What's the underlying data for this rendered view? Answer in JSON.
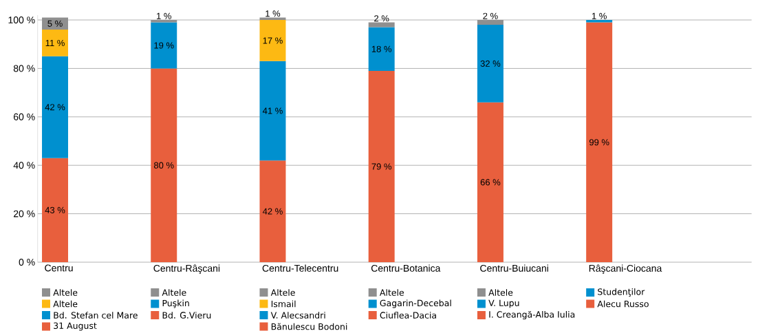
{
  "chart_data": {
    "type": "bar",
    "stacked": true,
    "legend": "bottom",
    "grid": "y",
    "categories": [
      "Centru",
      "Centru-Râşcani",
      "Centru-Telecentru",
      "Centru-Botanica",
      "Centru-Buiucani",
      "Râşcani-Ciocana"
    ],
    "ylim": [
      0,
      102
    ],
    "yticks": [
      {
        "value": 0,
        "label": "0 %"
      },
      {
        "value": 20,
        "label": "20 %"
      },
      {
        "value": 40,
        "label": "40 %"
      },
      {
        "value": 60,
        "label": "60 %"
      },
      {
        "value": 80,
        "label": "80 %"
      },
      {
        "value": 100,
        "label": "100 %"
      }
    ],
    "series": [
      {
        "name": "31 August",
        "color": "#e85f3d",
        "values": [
          43,
          null,
          null,
          null,
          null,
          null
        ],
        "value_labels": [
          "43 %",
          null,
          null,
          null,
          null,
          null
        ]
      },
      {
        "name": "Bd. Stefan cel Mare",
        "color": "#0090cf",
        "values": [
          42,
          null,
          null,
          null,
          null,
          null
        ],
        "value_labels": [
          "42 %",
          null,
          null,
          null,
          null,
          null
        ]
      },
      {
        "name": "Altele",
        "color": "#fdb913",
        "values": [
          11,
          null,
          null,
          null,
          null,
          null
        ],
        "value_labels": [
          "11 %",
          null,
          null,
          null,
          null,
          null
        ]
      },
      {
        "name": "Altele",
        "color": "#8f8f8f",
        "values": [
          5,
          null,
          null,
          null,
          null,
          null
        ],
        "value_labels": [
          "5 %",
          null,
          null,
          null,
          null,
          null
        ]
      },
      {
        "name": "Bd. G.Vieru",
        "color": "#e85f3d",
        "values": [
          null,
          80,
          null,
          null,
          null,
          null
        ],
        "value_labels": [
          null,
          "80 %",
          null,
          null,
          null,
          null
        ]
      },
      {
        "name": "Puşkin",
        "color": "#0090cf",
        "values": [
          null,
          19,
          null,
          null,
          null,
          null
        ],
        "value_labels": [
          null,
          "19 %",
          null,
          null,
          null,
          null
        ]
      },
      {
        "name": "Altele",
        "color": "#8f8f8f",
        "values": [
          null,
          1,
          null,
          null,
          null,
          null
        ],
        "value_labels": [
          null,
          "1 %",
          null,
          null,
          null,
          null
        ]
      },
      {
        "name": "Bănulescu Bodoni",
        "color": "#e85f3d",
        "values": [
          null,
          null,
          42,
          null,
          null,
          null
        ],
        "value_labels": [
          null,
          null,
          "42 %",
          null,
          null,
          null
        ]
      },
      {
        "name": "V. Alecsandri",
        "color": "#0090cf",
        "values": [
          null,
          null,
          41,
          null,
          null,
          null
        ],
        "value_labels": [
          null,
          null,
          "41 %",
          null,
          null,
          null
        ]
      },
      {
        "name": "Ismail",
        "color": "#fdb913",
        "values": [
          null,
          null,
          17,
          null,
          null,
          null
        ],
        "value_labels": [
          null,
          null,
          "17 %",
          null,
          null,
          null
        ]
      },
      {
        "name": "Altele",
        "color": "#8f8f8f",
        "values": [
          null,
          null,
          1,
          null,
          null,
          null
        ],
        "value_labels": [
          null,
          null,
          "1 %",
          null,
          null,
          null
        ]
      },
      {
        "name": "Ciuflea-Dacia",
        "color": "#e85f3d",
        "values": [
          null,
          null,
          null,
          79,
          null,
          null
        ],
        "value_labels": [
          null,
          null,
          null,
          "79 %",
          null,
          null
        ]
      },
      {
        "name": "Gagarin-Decebal",
        "color": "#0090cf",
        "values": [
          null,
          null,
          null,
          18,
          null,
          null
        ],
        "value_labels": [
          null,
          null,
          null,
          "18 %",
          null,
          null
        ]
      },
      {
        "name": "Altele",
        "color": "#8f8f8f",
        "values": [
          null,
          null,
          null,
          2,
          null,
          null
        ],
        "value_labels": [
          null,
          null,
          null,
          "2 %",
          null,
          null
        ]
      },
      {
        "name": "I. Creangă-Alba Iulia",
        "color": "#e85f3d",
        "values": [
          null,
          null,
          null,
          null,
          66,
          null
        ],
        "value_labels": [
          null,
          null,
          null,
          null,
          "66 %",
          null
        ]
      },
      {
        "name": "V. Lupu",
        "color": "#0090cf",
        "values": [
          null,
          null,
          null,
          null,
          32,
          null
        ],
        "value_labels": [
          null,
          null,
          null,
          null,
          "32 %",
          null
        ]
      },
      {
        "name": "Altele",
        "color": "#8f8f8f",
        "values": [
          null,
          null,
          null,
          null,
          2,
          null
        ],
        "value_labels": [
          null,
          null,
          null,
          null,
          "2 %",
          null
        ]
      },
      {
        "name": "Alecu Russo",
        "color": "#e85f3d",
        "values": [
          null,
          null,
          null,
          null,
          null,
          99
        ],
        "value_labels": [
          null,
          null,
          null,
          null,
          null,
          "99 %"
        ]
      },
      {
        "name": "Studenţilor",
        "color": "#0090cf",
        "values": [
          null,
          null,
          null,
          null,
          null,
          1
        ],
        "value_labels": [
          null,
          null,
          null,
          null,
          null,
          "1 %"
        ]
      }
    ]
  }
}
